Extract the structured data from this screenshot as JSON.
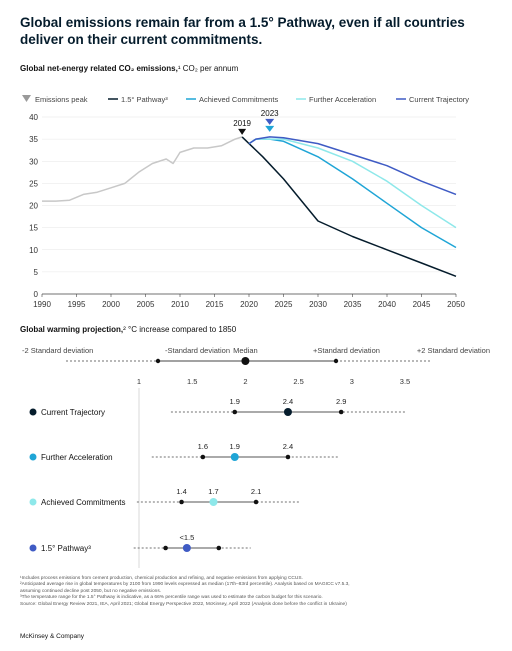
{
  "title": "Global emissions remain far from a 1.5° Pathway, even if all countries deliver on their current commitments.",
  "subtitle_bold": "Global net-energy related CO₂ emissions,",
  "subtitle_rest": "¹ CO₂ per annum",
  "subtitle2_bold": "Global warming projection,",
  "subtitle2_rest": "² °C increase compared to 1850",
  "brand": "McKinsey & Company",
  "footnotes": [
    "¹Includes process emissions from cement production, chemical production and refining, and negative emissions from applying CCUS.",
    "²Anticipated average rise in global temperatures by 2100 from 1990 levels expressed as median (17th–83rd percentile). Analysis based on MAGICC v7.5.3,",
    "  assuming continued decline post 2050, but no negative emissions.",
    "³The temperature range for the 1.5° Pathway is indicative, as a 66% percentile range was used to estimate the carbon budget for this scenario.",
    "  Source: Global Energy Review 2021, IEA, April 2021; Global Energy Perspective 2022, McKinsey, April 2022 (Analysis done before the conflict in Ukraine)"
  ],
  "colors": {
    "pathway": "#051c2c",
    "achieved": "#1fa5d6",
    "further": "#8ee8ea",
    "current": "#3f5bc4",
    "history": "#c8c8c8",
    "peak": "#9a9a9a"
  },
  "chart_data": [
    {
      "type": "line",
      "title": "Global net-energy related CO₂ emissions, CO₂ per annum",
      "xlabel": "",
      "ylabel": "",
      "xlim": [
        1990,
        2050
      ],
      "ylim": [
        0,
        40
      ],
      "x_ticks": [
        1990,
        1995,
        2000,
        2005,
        2010,
        2015,
        2020,
        2025,
        2030,
        2035,
        2040,
        2045,
        2050
      ],
      "y_ticks": [
        0,
        5,
        10,
        15,
        20,
        25,
        30,
        35,
        40
      ],
      "grid": true,
      "legend": [
        {
          "name": "Emissions peak",
          "kind": "triangle"
        },
        {
          "name": "1.5° Pathway³",
          "kind": "line",
          "color": "#051c2c"
        },
        {
          "name": "Achieved Commitments",
          "kind": "line",
          "color": "#1fa5d6"
        },
        {
          "name": "Further Acceleration",
          "kind": "line",
          "color": "#8ee8ea"
        },
        {
          "name": "Current Trajectory",
          "kind": "line",
          "color": "#3f5bc4"
        }
      ],
      "series": [
        {
          "key": "history",
          "x": [
            1990,
            1992,
            1994,
            1996,
            1998,
            2000,
            2002,
            2004,
            2006,
            2008,
            2009,
            2010,
            2012,
            2014,
            2016,
            2018,
            2019
          ],
          "values": [
            21,
            21,
            21.2,
            22.5,
            23,
            24,
            25,
            27.5,
            29.5,
            30.5,
            29.5,
            32,
            33,
            33,
            33.5,
            35,
            35.5
          ]
        },
        {
          "key": "pathway",
          "name": "1.5° Pathway³",
          "x": [
            2019,
            2020,
            2022,
            2025,
            2030,
            2035,
            2040,
            2045,
            2050
          ],
          "values": [
            35.5,
            34,
            31,
            26,
            16.5,
            13,
            10,
            7,
            4
          ]
        },
        {
          "key": "achieved",
          "name": "Achieved Commitments",
          "x": [
            2020,
            2021,
            2023,
            2025,
            2030,
            2035,
            2040,
            2045,
            2050
          ],
          "values": [
            34,
            35,
            35,
            34.5,
            31,
            26,
            20.5,
            15,
            10.5
          ]
        },
        {
          "key": "further",
          "name": "Further Acceleration",
          "x": [
            2020,
            2021,
            2023,
            2025,
            2030,
            2035,
            2040,
            2045,
            2050
          ],
          "values": [
            34,
            35,
            35,
            35,
            33,
            30,
            25.5,
            20,
            15
          ]
        },
        {
          "key": "current",
          "name": "Current Trajectory",
          "x": [
            2020,
            2021,
            2023,
            2025,
            2030,
            2035,
            2040,
            2045,
            2050
          ],
          "values": [
            34,
            35,
            35.5,
            35.3,
            34,
            31.5,
            29,
            25.5,
            22.5
          ]
        }
      ],
      "annotations": [
        {
          "label": "2019",
          "x": 2019,
          "y": 35.5
        },
        {
          "label": "2023",
          "x": 2023,
          "y": 35.5
        }
      ]
    },
    {
      "type": "scatter",
      "title": "Global warming projection, °C increase compared to 1850",
      "x_ticks": [
        1,
        1.5,
        2,
        2.5,
        3,
        3.5
      ],
      "xlim": [
        1,
        3.5
      ],
      "scale_labels": [
        "-2 Standard deviation",
        "-Standard deviation",
        "Median",
        "+Standard deviation",
        "+2 Standard deviation"
      ],
      "rows": [
        {
          "name": "Current Trajectory",
          "color": "#051c2c",
          "low": 1.9,
          "median": 2.4,
          "high": 2.9,
          "low_label": "1.9",
          "median_label": "2.4",
          "high_label": "2.9"
        },
        {
          "name": "Further Acceleration",
          "color": "#1fa5d6",
          "low": 1.6,
          "median": 1.9,
          "high": 2.4,
          "low_label": "1.6",
          "median_label": "1.9",
          "high_label": "2.4"
        },
        {
          "name": "Achieved Commitments",
          "color": "#8ee8ea",
          "low": 1.4,
          "median": 1.7,
          "high": 2.1,
          "low_label": "1.4",
          "median_label": "1.7",
          "high_label": "2.1"
        },
        {
          "name": "1.5° Pathway³",
          "color": "#3f5bc4",
          "low": 1.25,
          "median": 1.45,
          "high": 1.75,
          "low_label": "",
          "median_label": "<1.5",
          "high_label": ""
        }
      ]
    }
  ]
}
